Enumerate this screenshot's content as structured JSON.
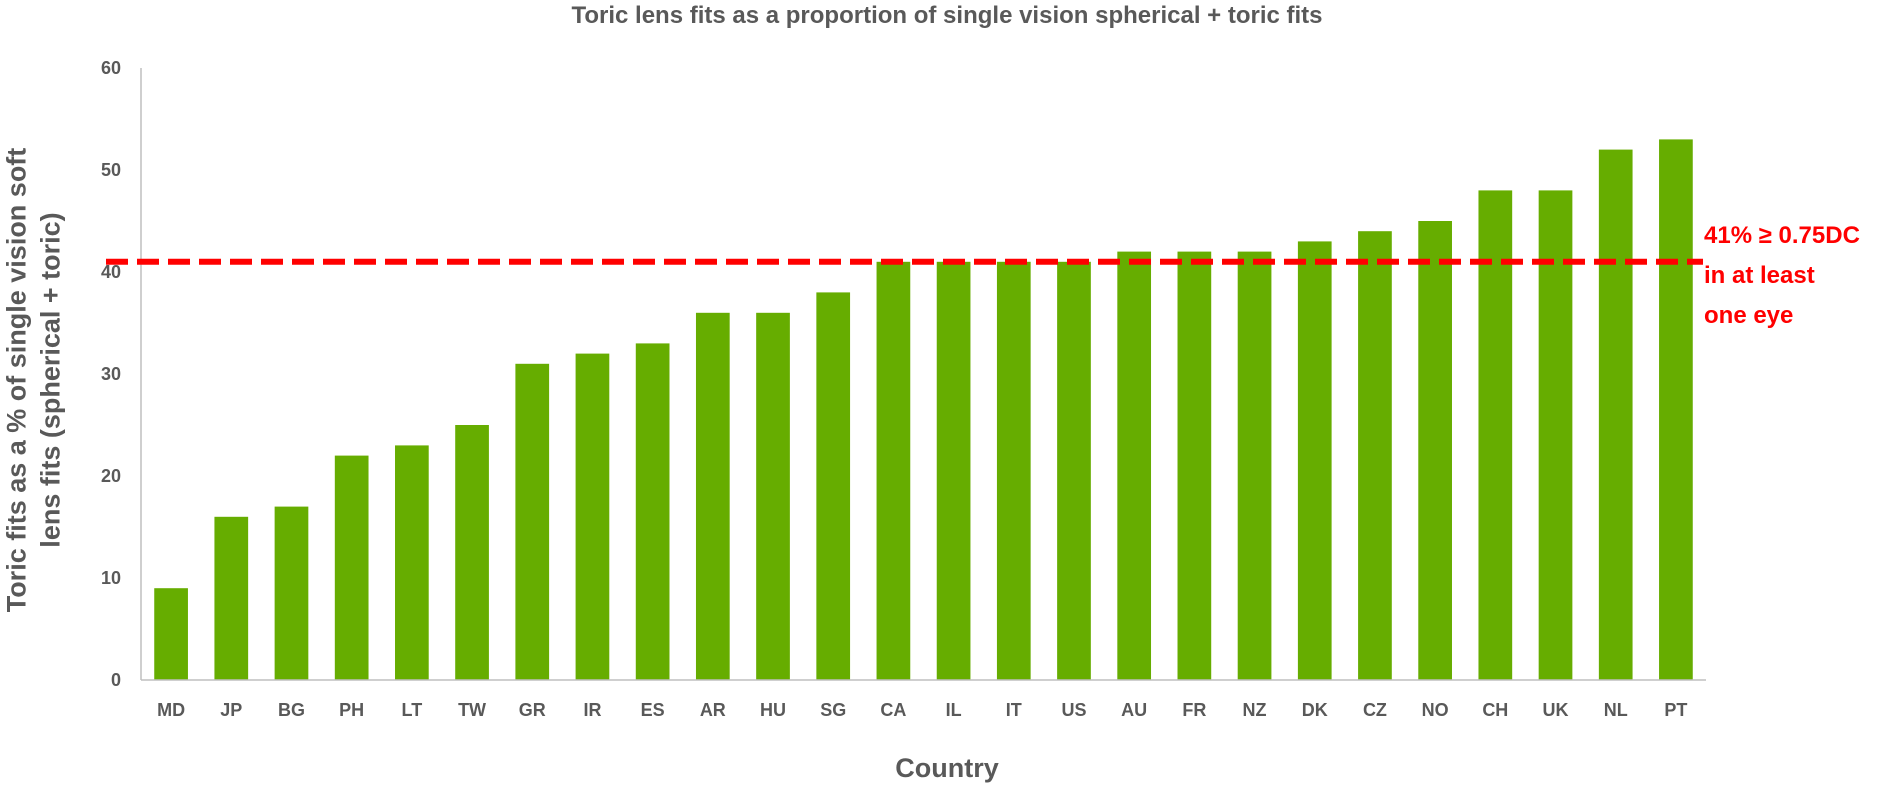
{
  "chart_data": {
    "type": "bar",
    "title": "Toric lens fits as a proportion of single vision spherical + toric fits",
    "xlabel": "Country",
    "ylabel": "Toric fits as a % of single vision soft lens fits (spherical + toric)",
    "ylabel_lines": [
      "Toric fits as a % of single vision soft",
      "lens fits (spherical + toric)"
    ],
    "categories": [
      "MD",
      "JP",
      "BG",
      "PH",
      "LT",
      "TW",
      "GR",
      "IR",
      "ES",
      "AR",
      "HU",
      "SG",
      "CA",
      "IL",
      "IT",
      "US",
      "AU",
      "FR",
      "NZ",
      "DK",
      "CZ",
      "NO",
      "CH",
      "UK",
      "NL",
      "PT"
    ],
    "values": [
      9,
      16,
      17,
      22,
      23,
      25,
      31,
      32,
      33,
      36,
      36,
      38,
      41,
      41,
      41,
      41,
      42,
      42,
      42,
      43,
      44,
      45,
      48,
      48,
      52,
      53
    ],
    "ylim": [
      0,
      60
    ],
    "yticks": [
      0,
      10,
      20,
      30,
      40,
      50,
      60
    ],
    "grid": false,
    "legend": "none",
    "reference_line": {
      "value": 41,
      "style": "dashed",
      "label_lines": [
        "41% ≥ 0.75DC",
        "in at least",
        "one eye"
      ]
    },
    "colors": {
      "bar": "#66ad00",
      "reference_line": "#ff0000",
      "axis": "#bfbfbf",
      "text": "#595959"
    }
  }
}
